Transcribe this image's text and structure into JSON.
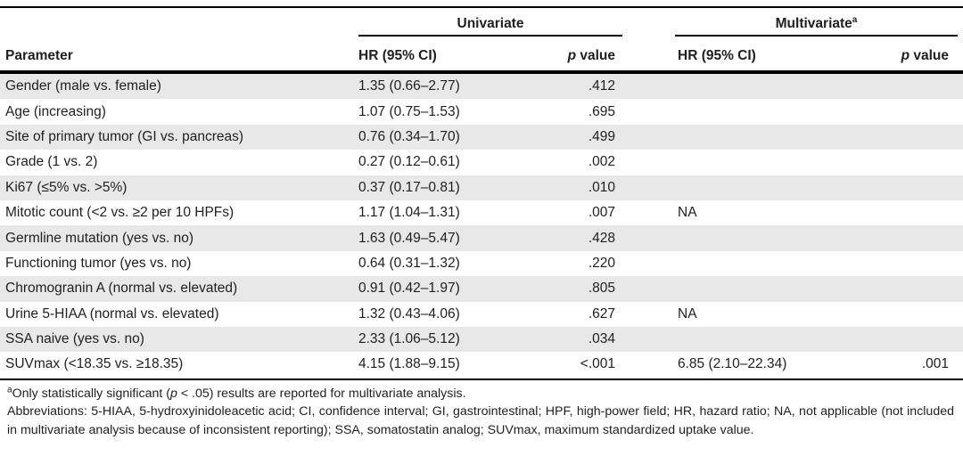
{
  "table": {
    "group_headers": {
      "univariate": "Univariate",
      "multivariate": "Multivariate",
      "multivariate_sup": "a"
    },
    "col_headers": {
      "parameter": "Parameter",
      "hr_univariate": "HR (95% CI)",
      "hr_multivariate": "HR (95% CI)",
      "p_italic": "p",
      "p_rest": " value"
    },
    "rows": [
      {
        "parameter": "Gender (male vs. female)",
        "uni_hr": "1.35 (0.66–2.77)",
        "uni_p": ".412",
        "multi_hr": "",
        "multi_p": ""
      },
      {
        "parameter": "Age (increasing)",
        "uni_hr": "1.07 (0.75–1.53)",
        "uni_p": ".695",
        "multi_hr": "",
        "multi_p": ""
      },
      {
        "parameter": "Site of primary tumor (GI vs. pancreas)",
        "uni_hr": "0.76 (0.34–1.70)",
        "uni_p": ".499",
        "multi_hr": "",
        "multi_p": ""
      },
      {
        "parameter": "Grade (1 vs. 2)",
        "uni_hr": "0.27 (0.12–0.61)",
        "uni_p": ".002",
        "multi_hr": "",
        "multi_p": ""
      },
      {
        "parameter": "Ki67 (≤5% vs. >5%)",
        "uni_hr": "0.37 (0.17–0.81)",
        "uni_p": ".010",
        "multi_hr": "",
        "multi_p": ""
      },
      {
        "parameter": "Mitotic count (<2 vs. ≥2 per 10 HPFs)",
        "uni_hr": "1.17 (1.04–1.31)",
        "uni_p": ".007",
        "multi_hr": "NA",
        "multi_p": ""
      },
      {
        "parameter": "Germline mutation (yes vs. no)",
        "uni_hr": "1.63 (0.49–5.47)",
        "uni_p": ".428",
        "multi_hr": "",
        "multi_p": ""
      },
      {
        "parameter": "Functioning tumor (yes vs. no)",
        "uni_hr": "0.64 (0.31–1.32)",
        "uni_p": ".220",
        "multi_hr": "",
        "multi_p": ""
      },
      {
        "parameter": "Chromogranin A (normal vs. elevated)",
        "uni_hr": "0.91 (0.42–1.97)",
        "uni_p": ".805",
        "multi_hr": "",
        "multi_p": ""
      },
      {
        "parameter": "Urine 5-HIAA (normal vs. elevated)",
        "uni_hr": "1.32 (0.43–4.06)",
        "uni_p": ".627",
        "multi_hr": "NA",
        "multi_p": ""
      },
      {
        "parameter": "SSA naive (yes vs. no)",
        "uni_hr": "2.33 (1.06–5.12)",
        "uni_p": ".034",
        "multi_hr": "",
        "multi_p": ""
      },
      {
        "parameter": "SUVmax (<18.35 vs. ≥18.35)",
        "uni_hr": "4.15 (1.88–9.15)",
        "uni_p": "<.001",
        "multi_hr": "6.85 (2.10–22.34)",
        "multi_p": ".001"
      }
    ],
    "footnotes": {
      "note_a_sup": "a",
      "note_a_pre": "Only statistically significant (",
      "note_a_p": "p",
      "note_a_post": " < .05) results are reported for multivariate analysis.",
      "abbreviations": "Abbreviations: 5-HIAA, 5-hydroxyinidoleacetic acid; CI, confidence interval; GI, gastrointestinal; HPF, high-power field; HR, hazard ratio; NA, not applicable (not included in multivariate analysis because of inconsistent reporting); SSA, somatostatin analog; SUVmax, maximum standardized uptake value."
    },
    "colors": {
      "row_shade": "#e8e8e8",
      "rule": "#000000",
      "text": "#1f1f1f"
    }
  }
}
